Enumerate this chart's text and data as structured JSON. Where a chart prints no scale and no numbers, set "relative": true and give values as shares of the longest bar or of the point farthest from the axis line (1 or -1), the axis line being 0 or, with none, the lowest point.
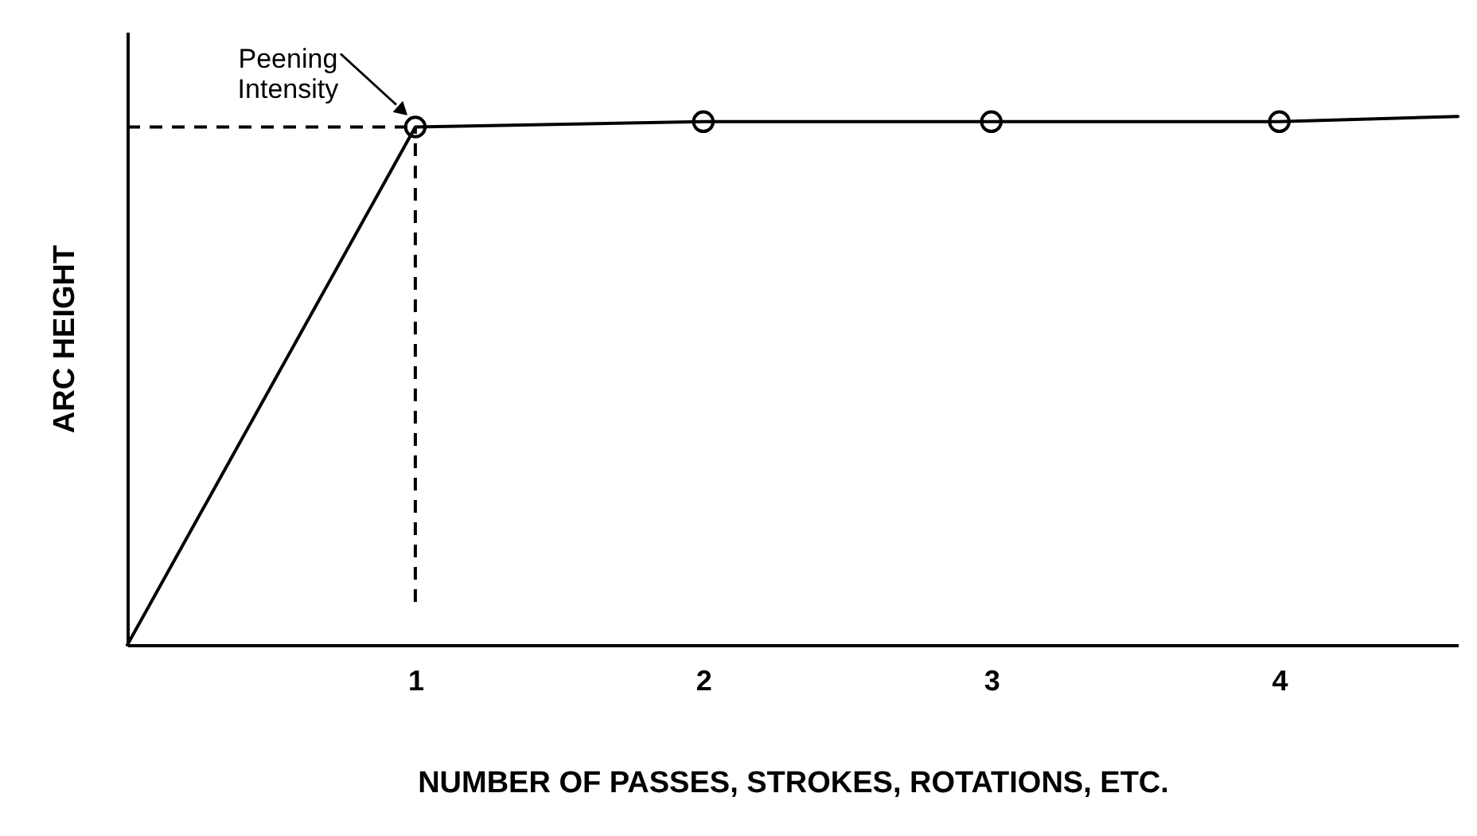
{
  "chart_data": {
    "type": "line",
    "relative": true,
    "xlabel": "NUMBER OF PASSES, STROKES, ROTATIONS, ETC.",
    "ylabel": "ARC HEIGHT",
    "xlim": [
      0,
      4.62
    ],
    "xticks": [
      1,
      2,
      3,
      4
    ],
    "tick_labels": "x",
    "grid": false,
    "series": [
      {
        "color": "#000000",
        "marker": "none",
        "x": [
          0,
          1,
          2,
          3,
          4,
          4.62
        ],
        "values": [
          0,
          0.98,
          0.99,
          0.99,
          0.99,
          1
        ]
      },
      {
        "type": "scatter",
        "color": "#000000",
        "marker": "circle",
        "x": [
          1,
          2,
          3,
          4
        ],
        "values": [
          0.98,
          0.99,
          0.99,
          0.99
        ]
      }
    ],
    "ref_lines": [
      {
        "axis": "x",
        "value": 1,
        "line_style": "dashed",
        "color": "#000000"
      },
      {
        "axis": "y",
        "value": 0.98,
        "line_style": "dashed",
        "color": "#000000"
      }
    ],
    "annotations": [
      {
        "text": "Peening Intensity",
        "x": 1,
        "y": 0.98
      }
    ]
  }
}
